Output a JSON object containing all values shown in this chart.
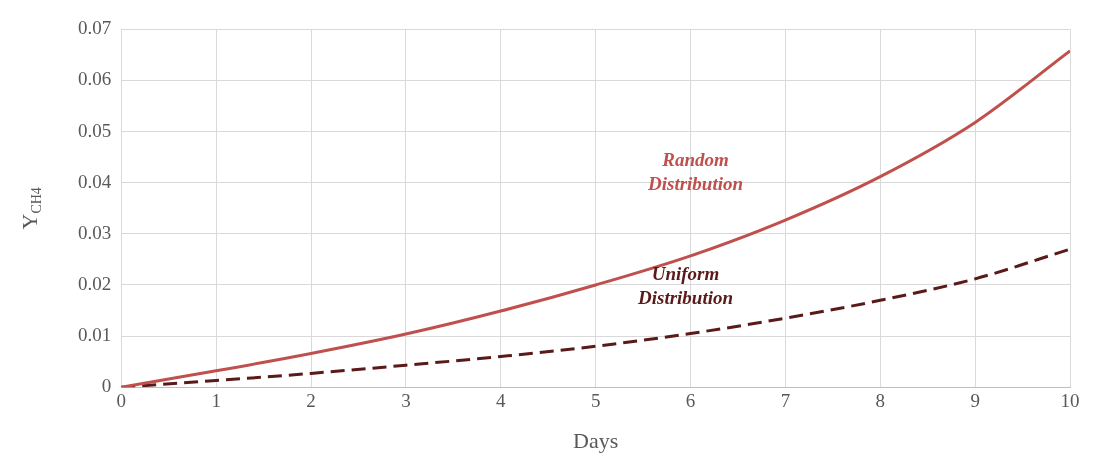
{
  "chart_data": {
    "type": "line",
    "xlabel": "Days",
    "ylabel": "Y$_{CH4}$",
    "x": [
      0,
      1,
      2,
      3,
      4,
      5,
      6,
      7,
      8,
      9,
      10
    ],
    "series": [
      {
        "name": "Random Distribution",
        "color": "#c0504d",
        "line_style": "solid",
        "values": [
          0,
          0.0032,
          0.0066,
          0.0104,
          0.0149,
          0.02,
          0.0257,
          0.0327,
          0.0412,
          0.0518,
          0.0658
        ]
      },
      {
        "name": "Uniform Distribution",
        "color": "#5a1a1a",
        "line_style": "dashed",
        "values": [
          0,
          0.0013,
          0.0027,
          0.0043,
          0.006,
          0.008,
          0.0105,
          0.0135,
          0.017,
          0.0212,
          0.027
        ]
      }
    ],
    "xlim": [
      0,
      10
    ],
    "xticks": [
      0,
      1,
      2,
      3,
      4,
      5,
      6,
      7,
      8,
      9,
      10
    ],
    "ylim": [
      0,
      0.07
    ],
    "yticks": [
      0,
      0.01,
      0.02,
      0.03,
      0.04,
      0.05,
      0.06,
      0.07
    ],
    "grid": true,
    "legend": false,
    "marker": "none"
  }
}
